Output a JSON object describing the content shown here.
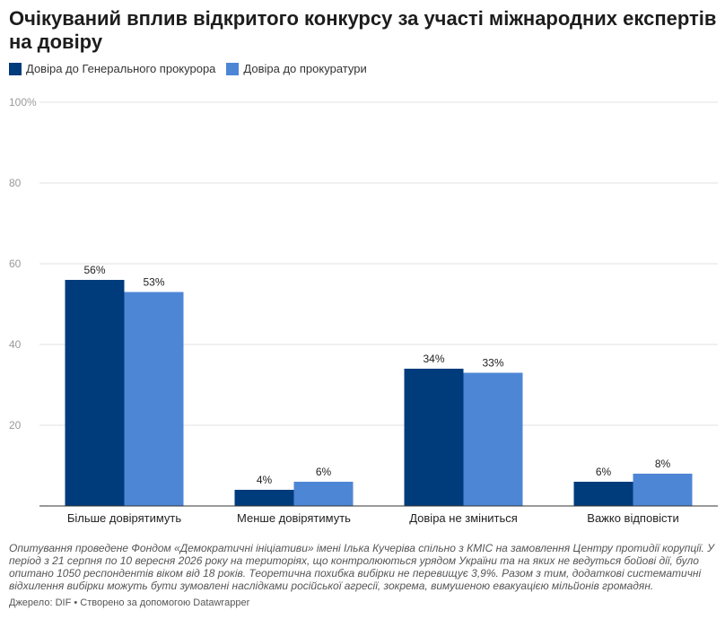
{
  "title": "Очікуваний вплив відкритого конкурсу за участі міжнародних експертів на довіру",
  "notes": "Опитування проведене Фондом «Демократичні ініціативи» імені Ілька Кучеріва спільно з КМІС на замовлення Центру протидії корупції. У період з 21 серпня по 10 вересня 2026 року на територіях, що контролюються урядом України та на яких не ведуться бойові дії, було опитано 1050 респондентів віком від 18 років. Теоретична похибка вибірки не перевищує 3,9%. Разом з тим, додаткові систематичні відхилення вибірки можуть бути зумовлені наслідками російської агресії, зокрема, вимушеною евакуацією мільйонів громадян.",
  "source": "Джерело: DIF • Створено за допомогою Datawrapper",
  "colors": {
    "series1": "#003b7c",
    "series2": "#4e86d6",
    "grid": "#e2e2e2",
    "axis": "#333333",
    "tick_text": "#9a9a9a"
  },
  "chart_data": {
    "type": "bar",
    "categories": [
      "Більше довірятимуть",
      "Менше довірятимуть",
      "Довіра не зміниться",
      "Важко відповісти"
    ],
    "series": [
      {
        "name": "Довіра до Генерального прокурора",
        "values": [
          56,
          4,
          34,
          6
        ],
        "labels": [
          "56%",
          "4%",
          "34%",
          "6%"
        ]
      },
      {
        "name": "Довіра до прокуратури",
        "values": [
          53,
          6,
          33,
          8
        ],
        "labels": [
          "53%",
          "6%",
          "33%",
          "8%"
        ]
      }
    ],
    "yticks": [
      "20",
      "40",
      "60",
      "80",
      "100%"
    ],
    "ytick_values": [
      20,
      40,
      60,
      80,
      100
    ],
    "ylim": [
      0,
      100
    ],
    "grid": true,
    "legend": "top-left"
  }
}
